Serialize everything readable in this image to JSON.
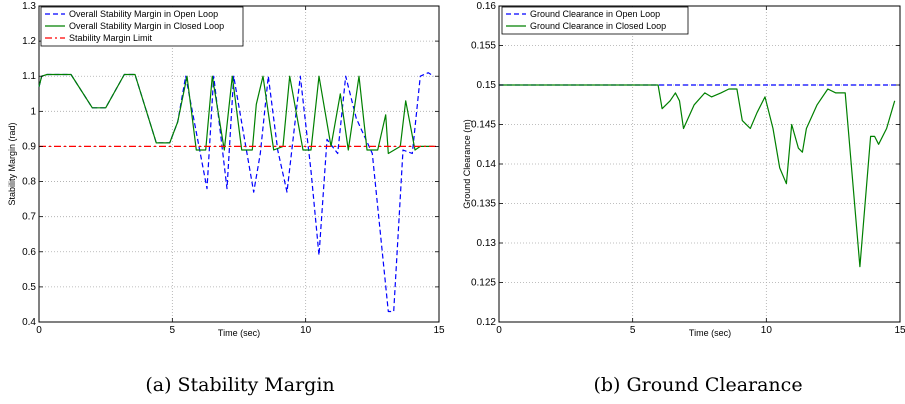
{
  "chart_data": [
    {
      "type": "line",
      "caption": "(a) Stability Margin",
      "xlabel": "Time (sec)",
      "ylabel": "Stability Margin (rad)",
      "xlim": [
        0,
        15
      ],
      "ylim": [
        0.4,
        1.3
      ],
      "xticks": [
        "0",
        "5",
        "10",
        "15"
      ],
      "yticks": [
        "0.4",
        "0.5",
        "0.6",
        "0.7",
        "0.8",
        "0.9",
        "1",
        "1.1",
        "1.2",
        "1.3"
      ],
      "grid": true,
      "legend_position": "top-left",
      "series": [
        {
          "name": "Overall Stability Margin in Open Loop",
          "color": "#0000ff",
          "dash": "dashed",
          "x": [
            0,
            0.1,
            0.3,
            1.2,
            2.0,
            2.5,
            3.2,
            3.6,
            4.4,
            4.9,
            5.2,
            5.5,
            6.05,
            6.3,
            6.55,
            7.05,
            7.3,
            7.8,
            8.05,
            8.3,
            8.6,
            8.95,
            9.3,
            9.8,
            10.2,
            10.5,
            10.8,
            11.2,
            11.5,
            11.9,
            12.5,
            13.1,
            13.3,
            13.65,
            14.0,
            14.3,
            14.6,
            14.8
          ],
          "y": [
            1.07,
            1.1,
            1.105,
            1.105,
            1.01,
            1.01,
            1.105,
            1.105,
            0.91,
            0.91,
            0.97,
            1.1,
            0.88,
            0.78,
            1.1,
            0.78,
            1.1,
            0.88,
            0.77,
            0.88,
            1.1,
            0.89,
            0.77,
            1.1,
            0.83,
            0.59,
            0.92,
            0.88,
            1.1,
            0.98,
            0.88,
            0.43,
            0.43,
            0.89,
            0.88,
            1.1,
            1.11,
            1.1
          ]
        },
        {
          "name": "Overall Stability Margin in Closed Loop",
          "color": "#008000",
          "dash": "solid",
          "x": [
            0,
            0.1,
            0.3,
            1.2,
            2.0,
            2.5,
            3.2,
            3.6,
            4.4,
            4.9,
            5.2,
            5.55,
            5.9,
            6.25,
            6.5,
            6.95,
            7.25,
            7.6,
            8.0,
            8.15,
            8.4,
            8.8,
            9.15,
            9.4,
            9.9,
            10.2,
            10.5,
            10.95,
            11.3,
            11.6,
            12.0,
            12.3,
            12.7,
            13.0,
            13.1,
            13.55,
            13.75,
            14.1,
            14.3,
            14.8
          ],
          "y": [
            1.07,
            1.1,
            1.105,
            1.105,
            1.01,
            1.01,
            1.105,
            1.105,
            0.91,
            0.91,
            0.97,
            1.1,
            0.89,
            0.89,
            1.1,
            0.89,
            1.1,
            0.89,
            0.89,
            1.02,
            1.1,
            0.89,
            0.9,
            1.1,
            0.89,
            0.89,
            1.1,
            0.9,
            1.05,
            0.89,
            1.1,
            0.89,
            0.89,
            0.99,
            0.88,
            0.9,
            1.03,
            0.89,
            0.9,
            0.9
          ]
        },
        {
          "name": "Stability Margin Limit",
          "color": "#ff0000",
          "dash": "dashdot",
          "x": [
            0,
            15
          ],
          "y": [
            0.9,
            0.9
          ]
        }
      ]
    },
    {
      "type": "line",
      "caption": "(b) Ground Clearance",
      "xlabel": "Time (sec)",
      "ylabel": "Ground Clearance (m)",
      "xlim": [
        0,
        15
      ],
      "ylim": [
        0.12,
        0.16
      ],
      "xticks": [
        "0",
        "5",
        "10",
        "15"
      ],
      "yticks": [
        "0.12",
        "0.125",
        "0.13",
        "0.135",
        "0.14",
        "0.145",
        "0.15",
        "0.155",
        "0.16"
      ],
      "grid": true,
      "legend_position": "top-left",
      "series": [
        {
          "name": "Ground Clearance in Open Loop",
          "color": "#0000ff",
          "dash": "dashed",
          "x": [
            0,
            15
          ],
          "y": [
            0.15,
            0.15
          ]
        },
        {
          "name": "Ground Clearance in Closed Loop",
          "color": "#008000",
          "dash": "solid",
          "x": [
            0,
            5.95,
            6.1,
            6.4,
            6.6,
            6.75,
            6.9,
            7.3,
            7.7,
            7.95,
            8.3,
            8.6,
            8.9,
            9.1,
            9.4,
            9.65,
            9.95,
            10.25,
            10.5,
            10.75,
            10.95,
            11.2,
            11.35,
            11.5,
            11.9,
            12.3,
            12.6,
            12.75,
            12.95,
            13.2,
            13.5,
            13.9,
            14.05,
            14.2,
            14.5,
            14.8
          ],
          "y": [
            0.15,
            0.15,
            0.147,
            0.148,
            0.149,
            0.148,
            0.1445,
            0.1475,
            0.149,
            0.1485,
            0.149,
            0.1495,
            0.1495,
            0.1455,
            0.1445,
            0.1465,
            0.1485,
            0.1445,
            0.1395,
            0.1375,
            0.145,
            0.142,
            0.1415,
            0.1445,
            0.1475,
            0.1495,
            0.149,
            0.149,
            0.149,
            0.139,
            0.127,
            0.1435,
            0.1435,
            0.1425,
            0.1445,
            0.148
          ]
        }
      ]
    }
  ]
}
